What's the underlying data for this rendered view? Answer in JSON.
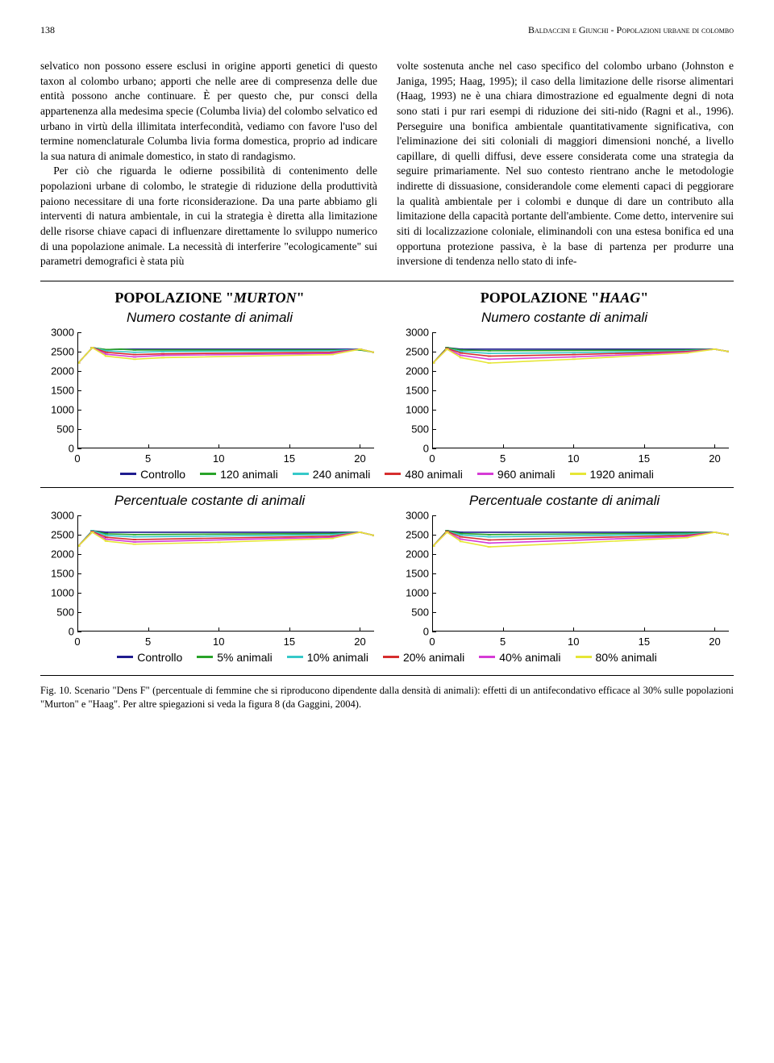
{
  "header": {
    "page_num": "138",
    "running": "Baldaccini e Giunchi - Popolazioni urbane di colombo"
  },
  "text": {
    "left_p1": "selvatico non possono essere esclusi in origine apporti genetici di questo taxon al colombo urbano; apporti che nelle aree di compresenza delle due entità possono anche continuare. È per questo che, pur consci della appartenenza alla medesima specie (Columba livia) del colombo selvatico ed urbano in virtù della illimitata interfecondità, vediamo con favore l'uso del termine nomenclaturale Columba livia forma domestica, proprio ad indicare la sua natura di animale domestico, in stato di randagismo.",
    "left_p2": "Per ciò che riguarda le odierne possibilità di contenimento delle popolazioni urbane di colombo, le strategie di riduzione della produttività paiono necessitare di una forte riconsiderazione. Da una parte abbiamo gli interventi di natura ambientale, in cui la strategia è diretta alla limitazione delle risorse chiave capaci di influenzare direttamente lo sviluppo numerico di una popolazione animale. La necessità di interferire \"ecologicamente\" sui parametri demografici è stata più",
    "right_p1": "volte sostenuta anche nel caso specifico del colombo urbano (Johnston e Janiga, 1995; Haag, 1995); il caso della limitazione delle risorse alimentari (Haag, 1993) ne è una chiara dimostrazione ed egualmente degni di nota sono stati i pur rari esempi di riduzione dei siti-nido (Ragni et al., 1996). Perseguire una bonifica ambientale quantitativamente significativa, con l'eliminazione dei siti coloniali di maggiori dimensioni nonché, a livello capillare, di quelli diffusi, deve essere considerata come una strategia da seguire primariamente. Nel suo contesto rientrano anche le metodologie indirette di dissuasione, considerandole come elementi capaci di peggiorare la qualità ambientale per i colombi e dunque di dare un contributo alla limitazione della capacità portante dell'ambiente. Come detto, intervenire sui siti di localizzazione coloniale, eliminandoli con una estesa bonifica ed una opportuna protezione passiva, è la base di partenza per produrre una inversione di tendenza nello stato di infe-"
  },
  "fig": {
    "pop_titles": {
      "left": "Popolazione \"MURTON\"",
      "right": "Popolazione \"HAAG\""
    },
    "subtitles": {
      "top": "Numero costante di animali",
      "bottom": "Percentuale costante di animali"
    },
    "axis": {
      "xlim": [
        0,
        21
      ],
      "ylim": [
        0,
        3000
      ],
      "xticks": [
        0,
        5,
        10,
        15,
        20
      ],
      "yticks": [
        0,
        500,
        1000,
        1500,
        2000,
        2500,
        3000
      ]
    },
    "colors": {
      "controllo": "#1f1c8f",
      "s120": "#29a329",
      "s240": "#36c9c9",
      "s480": "#d62e2e",
      "s960": "#d63cd6",
      "s1920": "#e6e636"
    },
    "legend_top": [
      {
        "key": "controllo",
        "label": "Controllo"
      },
      {
        "key": "s120",
        "label": "120 animali"
      },
      {
        "key": "s240",
        "label": "240 animali"
      },
      {
        "key": "s480",
        "label": "480 animali"
      },
      {
        "key": "s960",
        "label": "960 animali"
      },
      {
        "key": "s1920",
        "label": "1920 animali"
      }
    ],
    "legend_bottom": [
      {
        "key": "controllo",
        "label": "Controllo"
      },
      {
        "key": "s120",
        "label": "5% animali"
      },
      {
        "key": "s240",
        "label": "10% animali"
      },
      {
        "key": "s480",
        "label": "20% animali"
      },
      {
        "key": "s960",
        "label": "40% animali"
      },
      {
        "key": "s1920",
        "label": "80% animali"
      }
    ],
    "charts": {
      "murton_top": {
        "controllo": [
          [
            0,
            2200
          ],
          [
            1,
            2600
          ],
          [
            2,
            2550
          ],
          [
            3,
            2560
          ],
          [
            20,
            2560
          ],
          [
            21,
            2480
          ]
        ],
        "s120": [
          [
            0,
            2200
          ],
          [
            1,
            2600
          ],
          [
            2,
            2550
          ],
          [
            3,
            2560
          ],
          [
            4,
            2540
          ],
          [
            20,
            2540
          ],
          [
            21,
            2480
          ]
        ],
        "s240": [
          [
            0,
            2200
          ],
          [
            1,
            2600
          ],
          [
            2,
            2520
          ],
          [
            4,
            2480
          ],
          [
            6,
            2500
          ],
          [
            18,
            2520
          ],
          [
            20,
            2560
          ],
          [
            21,
            2480
          ]
        ],
        "s480": [
          [
            0,
            2200
          ],
          [
            1,
            2600
          ],
          [
            2,
            2480
          ],
          [
            4,
            2420
          ],
          [
            6,
            2440
          ],
          [
            18,
            2480
          ],
          [
            20,
            2560
          ],
          [
            21,
            2480
          ]
        ],
        "s960": [
          [
            0,
            2200
          ],
          [
            1,
            2600
          ],
          [
            2,
            2430
          ],
          [
            4,
            2360
          ],
          [
            6,
            2400
          ],
          [
            18,
            2450
          ],
          [
            20,
            2560
          ],
          [
            21,
            2480
          ]
        ],
        "s1920": [
          [
            0,
            2200
          ],
          [
            1,
            2600
          ],
          [
            2,
            2380
          ],
          [
            4,
            2300
          ],
          [
            6,
            2340
          ],
          [
            18,
            2420
          ],
          [
            20,
            2560
          ],
          [
            21,
            2480
          ]
        ]
      },
      "haag_top": {
        "controllo": [
          [
            0,
            2200
          ],
          [
            1,
            2600
          ],
          [
            2,
            2560
          ],
          [
            20,
            2560
          ],
          [
            21,
            2500
          ]
        ],
        "s120": [
          [
            0,
            2200
          ],
          [
            1,
            2600
          ],
          [
            2,
            2540
          ],
          [
            4,
            2520
          ],
          [
            18,
            2540
          ],
          [
            20,
            2560
          ],
          [
            21,
            2500
          ]
        ],
        "s240": [
          [
            0,
            2200
          ],
          [
            1,
            2580
          ],
          [
            2,
            2500
          ],
          [
            4,
            2450
          ],
          [
            10,
            2470
          ],
          [
            18,
            2520
          ],
          [
            20,
            2560
          ],
          [
            21,
            2500
          ]
        ],
        "s480": [
          [
            0,
            2200
          ],
          [
            1,
            2580
          ],
          [
            2,
            2460
          ],
          [
            4,
            2380
          ],
          [
            10,
            2420
          ],
          [
            18,
            2500
          ],
          [
            20,
            2560
          ],
          [
            21,
            2500
          ]
        ],
        "s960": [
          [
            0,
            2200
          ],
          [
            1,
            2560
          ],
          [
            2,
            2400
          ],
          [
            4,
            2300
          ],
          [
            10,
            2360
          ],
          [
            18,
            2480
          ],
          [
            20,
            2560
          ],
          [
            21,
            2500
          ]
        ],
        "s1920": [
          [
            0,
            2200
          ],
          [
            1,
            2560
          ],
          [
            2,
            2340
          ],
          [
            4,
            2200
          ],
          [
            10,
            2300
          ],
          [
            18,
            2460
          ],
          [
            20,
            2560
          ],
          [
            21,
            2500
          ]
        ]
      },
      "murton_bottom": {
        "controllo": [
          [
            0,
            2200
          ],
          [
            1,
            2600
          ],
          [
            2,
            2560
          ],
          [
            20,
            2560
          ],
          [
            21,
            2480
          ]
        ],
        "s120": [
          [
            0,
            2200
          ],
          [
            1,
            2600
          ],
          [
            2,
            2520
          ],
          [
            4,
            2500
          ],
          [
            18,
            2530
          ],
          [
            20,
            2560
          ],
          [
            21,
            2480
          ]
        ],
        "s240": [
          [
            0,
            2200
          ],
          [
            1,
            2600
          ],
          [
            2,
            2480
          ],
          [
            4,
            2440
          ],
          [
            18,
            2500
          ],
          [
            20,
            2560
          ],
          [
            21,
            2480
          ]
        ],
        "s480": [
          [
            0,
            2200
          ],
          [
            1,
            2580
          ],
          [
            2,
            2430
          ],
          [
            4,
            2370
          ],
          [
            18,
            2460
          ],
          [
            20,
            2560
          ],
          [
            21,
            2480
          ]
        ],
        "s960": [
          [
            0,
            2200
          ],
          [
            1,
            2560
          ],
          [
            2,
            2380
          ],
          [
            4,
            2310
          ],
          [
            18,
            2430
          ],
          [
            20,
            2560
          ],
          [
            21,
            2480
          ]
        ],
        "s1920": [
          [
            0,
            2200
          ],
          [
            1,
            2560
          ],
          [
            2,
            2330
          ],
          [
            4,
            2250
          ],
          [
            10,
            2300
          ],
          [
            18,
            2400
          ],
          [
            20,
            2560
          ],
          [
            21,
            2480
          ]
        ]
      },
      "haag_bottom": {
        "controllo": [
          [
            0,
            2200
          ],
          [
            1,
            2600
          ],
          [
            2,
            2560
          ],
          [
            20,
            2560
          ],
          [
            21,
            2500
          ]
        ],
        "s120": [
          [
            0,
            2200
          ],
          [
            1,
            2600
          ],
          [
            2,
            2530
          ],
          [
            4,
            2500
          ],
          [
            18,
            2540
          ],
          [
            20,
            2560
          ],
          [
            21,
            2500
          ]
        ],
        "s240": [
          [
            0,
            2200
          ],
          [
            1,
            2580
          ],
          [
            2,
            2490
          ],
          [
            4,
            2440
          ],
          [
            18,
            2510
          ],
          [
            20,
            2560
          ],
          [
            21,
            2500
          ]
        ],
        "s480": [
          [
            0,
            2200
          ],
          [
            1,
            2580
          ],
          [
            2,
            2440
          ],
          [
            4,
            2360
          ],
          [
            18,
            2480
          ],
          [
            20,
            2560
          ],
          [
            21,
            2500
          ]
        ],
        "s960": [
          [
            0,
            2200
          ],
          [
            1,
            2560
          ],
          [
            2,
            2380
          ],
          [
            4,
            2280
          ],
          [
            18,
            2450
          ],
          [
            20,
            2560
          ],
          [
            21,
            2500
          ]
        ],
        "s1920": [
          [
            0,
            2200
          ],
          [
            1,
            2560
          ],
          [
            2,
            2320
          ],
          [
            4,
            2180
          ],
          [
            10,
            2280
          ],
          [
            18,
            2420
          ],
          [
            20,
            2560
          ],
          [
            21,
            2500
          ]
        ]
      }
    }
  },
  "caption": "Fig. 10. Scenario \"Dens F\" (percentuale di femmine che si riproducono dipendente dalla densità di animali): effetti di un antifecondativo efficace al 30% sulle popolazioni \"Murton\" e \"Haag\". Per altre spiegazioni si veda la figura 8 (da Gaggini, 2004)."
}
